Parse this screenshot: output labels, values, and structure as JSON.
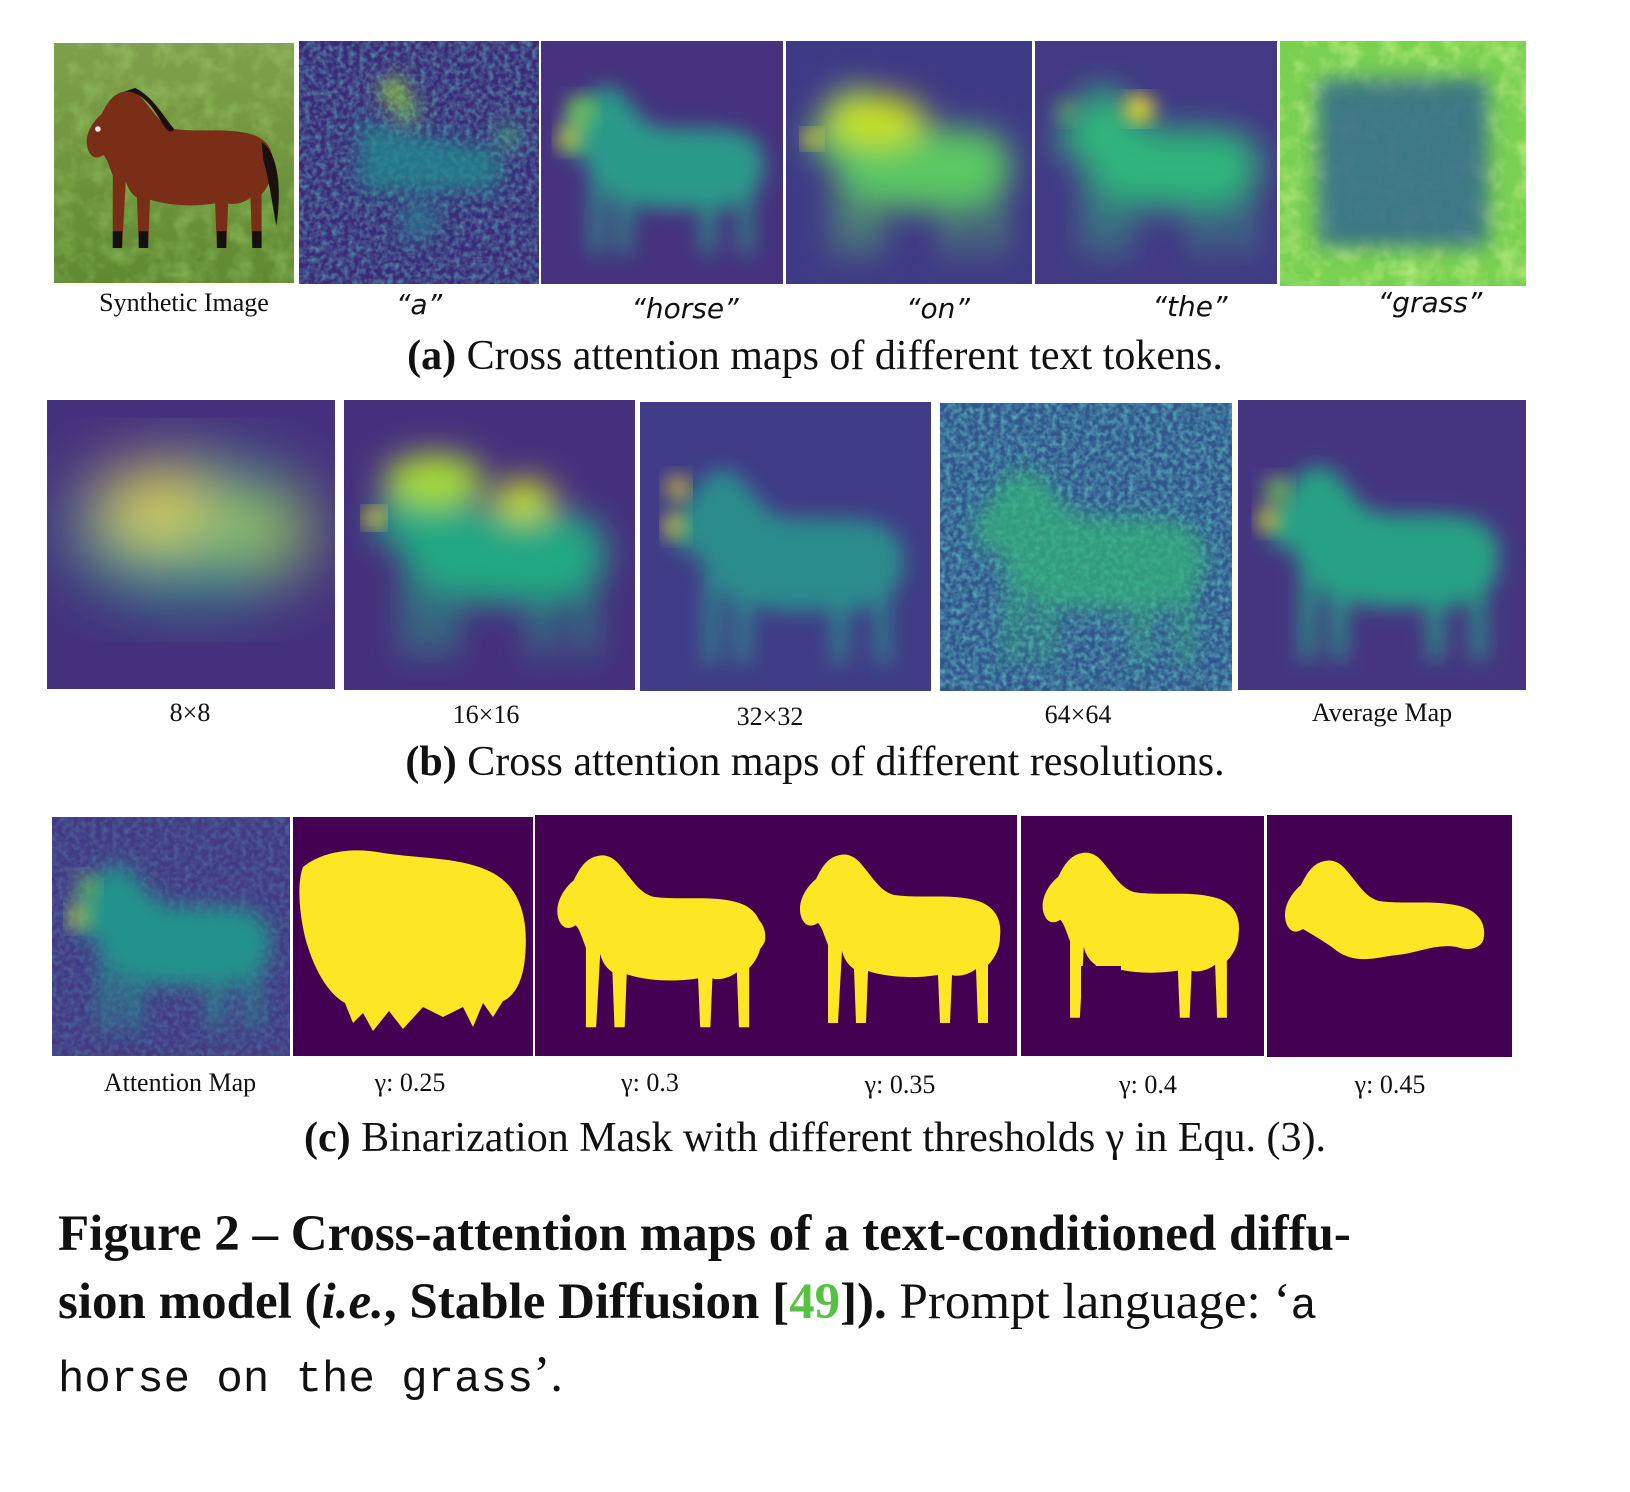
{
  "row_a": {
    "labels": [
      "Synthetic Image",
      "“a”",
      "“horse”",
      "“on”",
      "“the”",
      "“grass”"
    ],
    "caption_bold": "(a)",
    "caption_text": " Cross attention maps of different text tokens."
  },
  "row_b": {
    "labels": [
      "8×8",
      "16×16",
      "32×32",
      "64×64",
      "Average Map"
    ],
    "caption_bold": "(b)",
    "caption_text": " Cross attention maps of different resolutions."
  },
  "row_c": {
    "labels": [
      "Attention Map",
      "γ: 0.25",
      "γ: 0.3",
      "γ: 0.35",
      "γ: 0.4",
      "γ: 0.45"
    ],
    "caption_bold": "(c)",
    "caption_text": " Binarization Mask with different thresholds γ in Equ. (3)."
  },
  "figure_caption": {
    "line1": "Figure 2 – Cross-attention maps of a text-conditioned diffu-",
    "line2_bold_a": "sion model (",
    "line2_italic": "i.e.",
    "line2_bold_b": ", Stable Diffusion [",
    "ref": "49",
    "line2_bold_c": "]).",
    "line2_rest": " Prompt language: ‘",
    "code1": "a",
    "code2": "horse on the grass",
    "tail": "’."
  },
  "colors": {
    "viridis_dark": "#440154",
    "viridis_mid": "#21918c",
    "viridis_yellow": "#fde725",
    "ref_green": "#56c242"
  }
}
